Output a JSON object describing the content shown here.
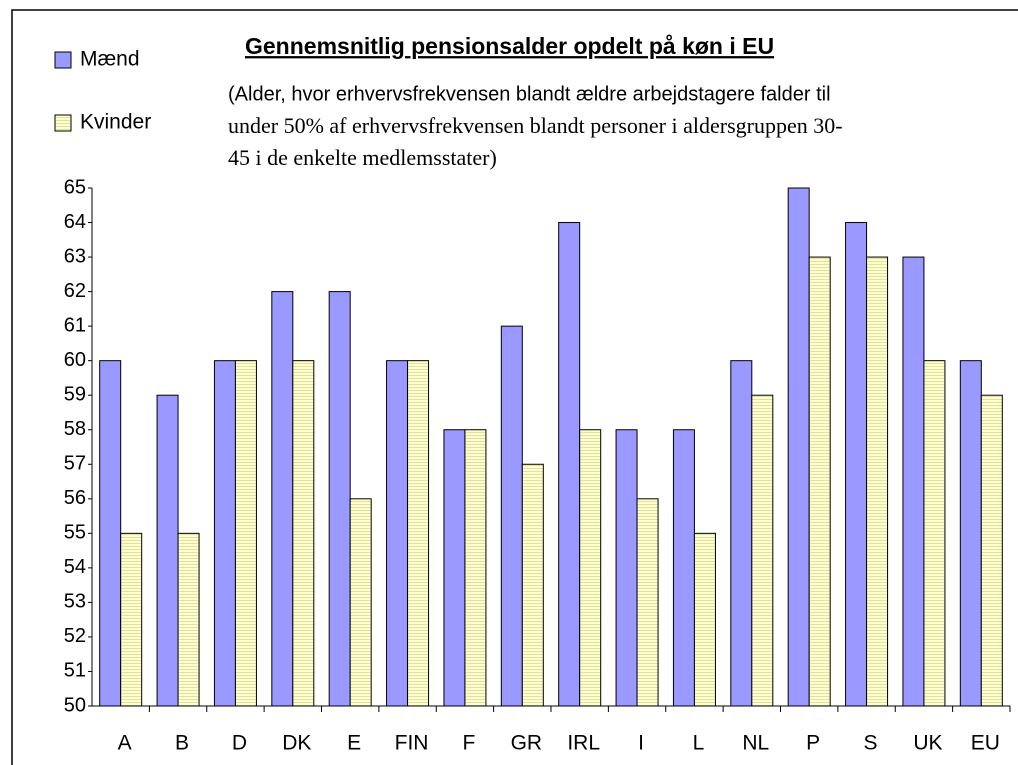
{
  "chart_data": {
    "type": "bar",
    "title": "Gennemsnitlig pensionsalder opdelt på køn i EU",
    "subtitle_lines": [
      "(Alder, hvor erhvervsfrekvensen blandt ældre arbejdstagere falder til",
      "under 50% af erhvervsfrekvensen blandt personer i aldersgruppen 30-",
      "45 i de enkelte medlemsstater)"
    ],
    "categories": [
      "A",
      "B",
      "D",
      "DK",
      "E",
      "FIN",
      "F",
      "GR",
      "IRL",
      "I",
      "L",
      "NL",
      "P",
      "S",
      "UK",
      "EU"
    ],
    "series": [
      {
        "name": "Mænd",
        "color": "#9999ff",
        "values": [
          60,
          59,
          60,
          62,
          62,
          60,
          58,
          61,
          64,
          58,
          58,
          60,
          65,
          64,
          63,
          60
        ]
      },
      {
        "name": "Kvinder",
        "color": "#ffffcc",
        "values": [
          55,
          55,
          60,
          60,
          56,
          60,
          58,
          57,
          58,
          56,
          55,
          59,
          63,
          63,
          60,
          59
        ]
      }
    ],
    "ylim": [
      50,
      65
    ],
    "yticks": [
      50,
      51,
      52,
      53,
      54,
      55,
      56,
      57,
      58,
      59,
      60,
      61,
      62,
      63,
      64,
      65
    ],
    "grid": false,
    "legend": "top-left"
  }
}
